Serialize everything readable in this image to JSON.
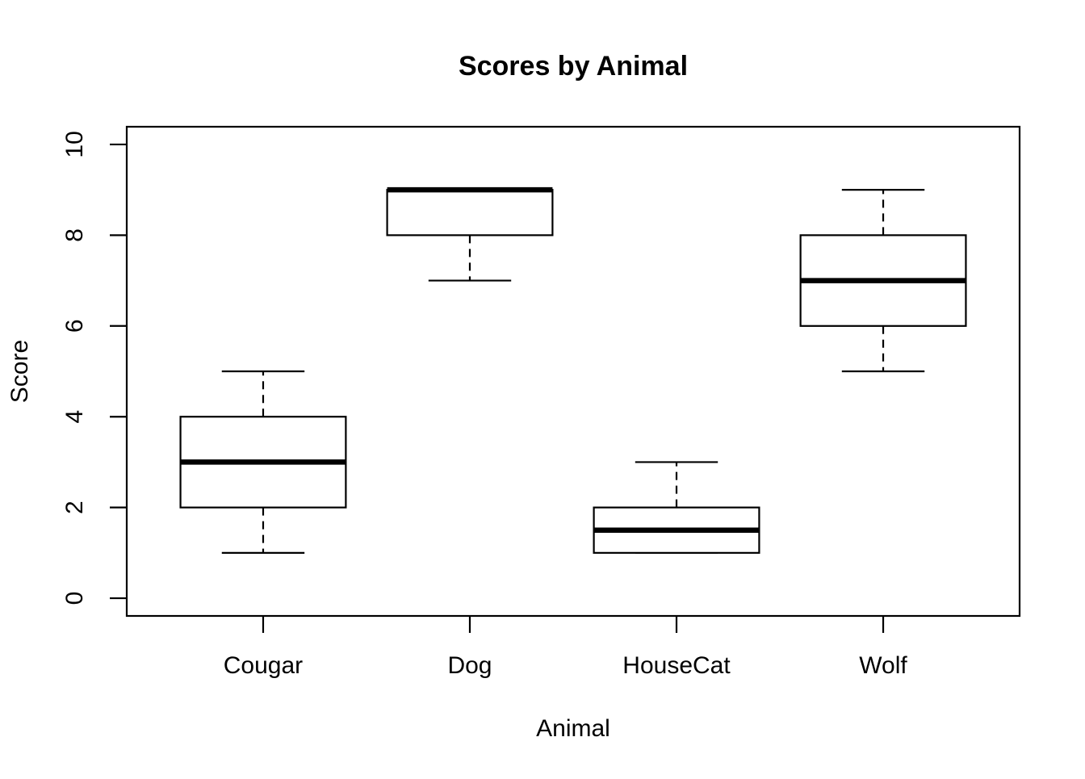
{
  "chart_data": {
    "type": "boxplot",
    "title": "Scores by Animal",
    "xlabel": "Animal",
    "ylabel": "Score",
    "categories": [
      "Cougar",
      "Dog",
      "HouseCat",
      "Wolf"
    ],
    "y_ticks": [
      0,
      2,
      4,
      6,
      8,
      10
    ],
    "ylim": [
      -0.39,
      10.39
    ],
    "xlim": [
      0.34,
      4.66
    ],
    "grid": false,
    "legend": "none",
    "box_width": 0.8,
    "series": [
      {
        "name": "Cougar",
        "min": 1,
        "q1": 2,
        "median": 3,
        "q3": 4,
        "max": 5
      },
      {
        "name": "Dog",
        "min": 7,
        "q1": 8,
        "median": 9,
        "q3": 9,
        "max": 9
      },
      {
        "name": "HouseCat",
        "min": 1,
        "q1": 1,
        "median": 1.5,
        "q3": 2,
        "max": 3
      },
      {
        "name": "Wolf",
        "min": 5,
        "q1": 6,
        "median": 7,
        "q3": 8,
        "max": 9
      }
    ],
    "colors": {
      "stroke": "#000000",
      "box_fill": "#ffffff",
      "background": "#ffffff"
    }
  }
}
